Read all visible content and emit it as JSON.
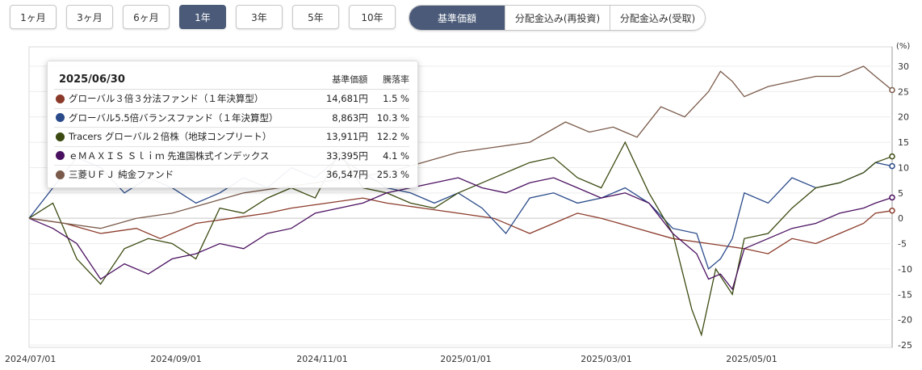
{
  "period_buttons": [
    {
      "label": "1ヶ月",
      "active": false
    },
    {
      "label": "3ヶ月",
      "active": false
    },
    {
      "label": "6ヶ月",
      "active": false
    },
    {
      "label": "1年",
      "active": true
    },
    {
      "label": "3年",
      "active": false
    },
    {
      "label": "5年",
      "active": false
    },
    {
      "label": "10年",
      "active": false
    }
  ],
  "mode_tabs": [
    {
      "label": "基準価額",
      "active": true
    },
    {
      "label": "分配金込み(再投資)",
      "active": false
    },
    {
      "label": "分配金込み(受取)",
      "active": false
    }
  ],
  "tooltip": {
    "date": "2025/06/30",
    "col_price": "基準価額",
    "col_rate": "騰落率",
    "rows": [
      {
        "name": "グローバル３倍３分法ファンド（１年決算型）",
        "price": "14,681円",
        "rate": "1.5 %"
      },
      {
        "name": "グローバル5.5倍バランスファンド（１年決算型）",
        "price": "8,863円",
        "rate": "10.3 %"
      },
      {
        "name": "Tracers グローバル２倍株（地球コンプリート）",
        "price": "13,911円",
        "rate": "12.2 %"
      },
      {
        "name": "ｅＭＡＸＩＳ Ｓｌｉｍ 先進国株式インデックス",
        "price": "33,395円",
        "rate": "4.1 %"
      },
      {
        "name": "三菱ＵＦＪ 純金ファンド",
        "price": "36,547円",
        "rate": "25.3 %"
      }
    ]
  },
  "chart_data": {
    "type": "line",
    "ylabel": "(%)",
    "ylim": [
      -25,
      30
    ],
    "yticks": [
      30,
      25,
      20,
      15,
      10,
      5,
      0,
      -5,
      -10,
      -15,
      -20,
      -25
    ],
    "x_tick_labels": [
      "2024/07/01",
      "2024/09/01",
      "2024/11/01",
      "2025/01/01",
      "2025/03/01",
      "2025/05/01"
    ],
    "grid": "horizontal",
    "series": [
      {
        "name": "グローバル３倍３分法ファンド（１年決算型）",
        "color": "#8b3a2a",
        "x": [
          0,
          15,
          30,
          45,
          55,
          70,
          85,
          100,
          110,
          125,
          140,
          150,
          165,
          180,
          195,
          210,
          220,
          230,
          240,
          255,
          270,
          285,
          300,
          310,
          320,
          330,
          340,
          350,
          355,
          362
        ],
        "y": [
          0,
          -1,
          -3,
          -2,
          -4,
          -1,
          0,
          1,
          2,
          3,
          4,
          3,
          2,
          1,
          0,
          -3,
          -1,
          1,
          0,
          -2,
          -4,
          -5,
          -6,
          -7,
          -4,
          -5,
          -3,
          -1,
          1,
          1.5
        ]
      },
      {
        "name": "グローバル5.5倍バランスファンド（１年決算型）",
        "color": "#2a4a8a",
        "x": [
          0,
          10,
          20,
          30,
          40,
          50,
          60,
          70,
          80,
          90,
          100,
          110,
          120,
          130,
          140,
          150,
          160,
          170,
          180,
          190,
          200,
          210,
          220,
          230,
          240,
          250,
          260,
          270,
          280,
          285,
          290,
          295,
          300,
          310,
          320,
          330,
          340,
          350,
          355,
          362
        ],
        "y": [
          0,
          6,
          12,
          10,
          5,
          8,
          6,
          3,
          5,
          8,
          6,
          10,
          8,
          12,
          9,
          6,
          5,
          3,
          5,
          2,
          -3,
          4,
          5,
          3,
          4,
          6,
          3,
          -2,
          -3,
          -10,
          -8,
          -4,
          5,
          3,
          8,
          6,
          7,
          9,
          11,
          10.3
        ]
      },
      {
        "name": "Tracers グローバル２倍株（地球コンプリート）",
        "color": "#3a4a10",
        "x": [
          0,
          10,
          20,
          30,
          40,
          50,
          60,
          70,
          80,
          90,
          100,
          110,
          120,
          130,
          140,
          150,
          160,
          170,
          180,
          190,
          200,
          210,
          220,
          230,
          240,
          250,
          260,
          270,
          278,
          282,
          288,
          295,
          300,
          310,
          320,
          330,
          340,
          350,
          355,
          362
        ],
        "y": [
          0,
          3,
          -8,
          -13,
          -6,
          -4,
          -5,
          -8,
          2,
          1,
          4,
          6,
          4,
          13,
          6,
          5,
          3,
          2,
          5,
          7,
          9,
          11,
          12,
          8,
          6,
          15,
          5,
          -3,
          -18,
          -23,
          -10,
          -15,
          -4,
          -3,
          2,
          6,
          7,
          9,
          11,
          12.2
        ]
      },
      {
        "name": "ｅＭＡＸＩＳ Ｓｌｉｍ 先進国株式インデックス",
        "color": "#4a1060",
        "x": [
          0,
          10,
          20,
          30,
          40,
          50,
          60,
          70,
          80,
          90,
          100,
          110,
          120,
          130,
          140,
          150,
          160,
          170,
          180,
          190,
          200,
          210,
          220,
          230,
          240,
          250,
          260,
          270,
          280,
          285,
          290,
          295,
          300,
          310,
          320,
          330,
          340,
          350,
          355,
          362
        ],
        "y": [
          0,
          -2,
          -5,
          -12,
          -9,
          -11,
          -8,
          -7,
          -5,
          -6,
          -3,
          -2,
          1,
          2,
          3,
          5,
          6,
          7,
          8,
          6,
          5,
          7,
          8,
          6,
          4,
          5,
          3,
          -3,
          -7,
          -12,
          -11,
          -14,
          -6,
          -4,
          -2,
          -1,
          1,
          2,
          3,
          4.1
        ]
      },
      {
        "name": "三菱ＵＦＪ 純金ファンド",
        "color": "#7a5a4a",
        "x": [
          0,
          15,
          30,
          45,
          60,
          75,
          90,
          105,
          120,
          135,
          150,
          165,
          180,
          195,
          210,
          225,
          235,
          245,
          255,
          265,
          275,
          285,
          290,
          295,
          300,
          310,
          320,
          330,
          340,
          350,
          355,
          362
        ],
        "y": [
          0,
          -1,
          -2,
          0,
          1,
          3,
          5,
          6,
          7,
          8,
          9,
          11,
          13,
          14,
          15,
          19,
          17,
          18,
          16,
          22,
          20,
          25,
          29,
          27,
          24,
          26,
          27,
          28,
          28,
          30,
          28,
          25.3
        ]
      }
    ]
  }
}
